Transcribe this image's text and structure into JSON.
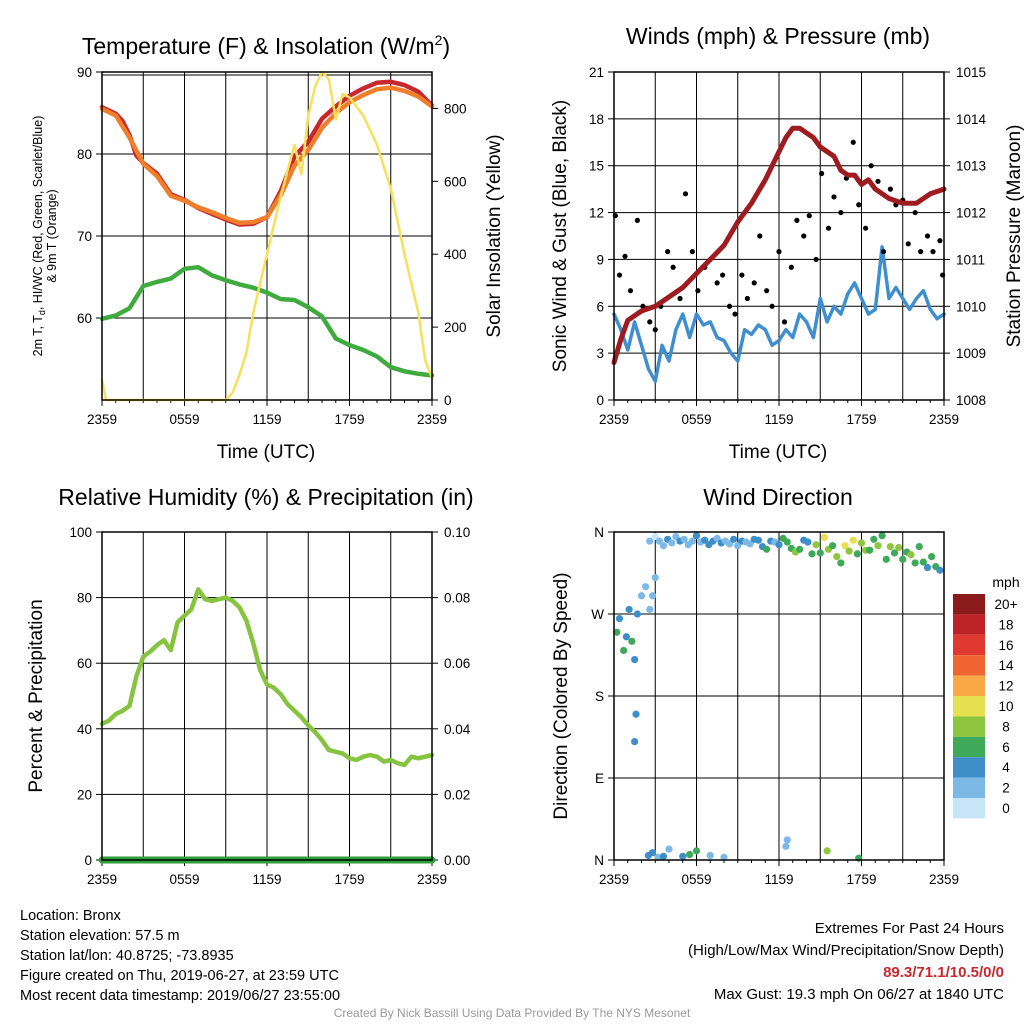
{
  "footer": {
    "location": "Location: Bronx",
    "elevation": "Station elevation: 57.5 m",
    "latlon": "Station lat/lon: 40.8725; -73.8935",
    "created": "Figure created on Thu, 2019-06-27, at 23:59 UTC",
    "recent": "Most recent data timestamp: 2019/06/27 23:55:00",
    "extremes_title": "Extremes For Past 24 Hours",
    "extremes_sub": "(High/Low/Max Wind/Precipitation/Snow Depth)",
    "extremes_values": "89.3/71.1/10.5/0/0",
    "max_gust": "Max Gust: 19.3 mph On 06/27 at 1840 UTC",
    "credit": "Created By Nick Bassill Using Data Provided By The NYS Mesonet"
  },
  "colors": {
    "t2m": "#c8282d",
    "t9m": "#f07e2a",
    "dewpoint": "#3fab3f",
    "insolation": "#f7e15a",
    "wind": "#3f8fd0",
    "gust": "#000000",
    "pressure": "#9e1b20",
    "rh": "#86c440",
    "precip": "#2e9e3a"
  },
  "chart_data": [
    {
      "type": "line",
      "title": "Temperature (F) & Insolation (W/m²)",
      "xlabel": "Time (UTC)",
      "ylabel": "2m T, Td, HI/WC (Red, Green, Scarlet/Blue) & 9m T (Orange)",
      "ylabel_line1": "2m T, T",
      "ylabel_sub": "d",
      "ylabel_line1b": ", HI/WC (Red, Green, Scarlet/Blue)",
      "ylabel_line2": "& 9m T (Orange)",
      "ylabel_right": "Solar Insolation (Yellow)",
      "xticks": [
        "2359",
        "0559",
        "1159",
        "1759",
        "2359"
      ],
      "yticks_left": [
        60,
        70,
        80,
        90
      ],
      "yticks_right": [
        0,
        200,
        400,
        600,
        800
      ],
      "ylim": [
        50,
        90
      ],
      "ylim_right": [
        0,
        900
      ],
      "grid": true,
      "series": [
        {
          "key": "t2m",
          "axis": "left",
          "x": [
            0,
            1,
            1.5,
            2,
            2.5,
            3,
            4,
            5,
            6,
            7,
            8,
            9,
            10,
            11,
            12,
            13,
            14,
            15,
            16,
            17,
            18,
            19,
            20,
            21,
            22,
            23,
            24
          ],
          "y": [
            85.7,
            84.9,
            84.0,
            82.3,
            79.8,
            78.9,
            77.6,
            75.1,
            74.4,
            73.4,
            72.7,
            72.0,
            71.4,
            71.5,
            72.3,
            75.5,
            79.7,
            81.5,
            84.3,
            85.8,
            87.1,
            88.0,
            88.7,
            88.8,
            88.4,
            87.6,
            85.9
          ]
        },
        {
          "key": "t9m",
          "axis": "left",
          "x": [
            0,
            1,
            2,
            3,
            4,
            5,
            6,
            7,
            8,
            9,
            10,
            11,
            12,
            13,
            14,
            15,
            16,
            17,
            18,
            19,
            20,
            21,
            22,
            23,
            24
          ],
          "y": [
            85.5,
            84.7,
            82.0,
            78.8,
            77.3,
            74.9,
            74.3,
            73.5,
            72.9,
            72.2,
            71.6,
            71.7,
            72.3,
            75.0,
            78.6,
            80.5,
            83.2,
            85.0,
            86.3,
            87.2,
            87.9,
            88.1,
            87.7,
            87.0,
            85.8
          ]
        },
        {
          "key": "dewpoint",
          "axis": "left",
          "x": [
            0,
            1,
            2,
            3,
            4,
            5,
            6,
            7,
            8,
            9,
            10,
            11,
            12,
            13,
            14,
            15,
            16,
            17,
            18,
            19,
            20,
            21,
            22,
            23,
            24
          ],
          "y": [
            59.9,
            60.3,
            61.2,
            63.9,
            64.4,
            64.8,
            66.0,
            66.2,
            65.2,
            64.6,
            64.1,
            63.7,
            63.1,
            62.3,
            62.2,
            61.3,
            60.2,
            57.5,
            56.7,
            56.1,
            55.3,
            54.0,
            53.5,
            53.2,
            53.0
          ]
        },
        {
          "key": "insolation",
          "axis": "right",
          "x": [
            0,
            0.3,
            1,
            4,
            7,
            9,
            9.5,
            10,
            10.5,
            11,
            12,
            13,
            14,
            14.5,
            15,
            15.5,
            16,
            16.5,
            17,
            17.5,
            18,
            19,
            20,
            21,
            22,
            23,
            23.5,
            24
          ],
          "y": [
            55,
            0,
            0,
            0,
            0,
            0,
            20,
            70,
            130,
            240,
            400,
            560,
            700,
            620,
            780,
            860,
            900,
            880,
            770,
            840,
            830,
            780,
            700,
            580,
            400,
            240,
            110,
            60
          ]
        }
      ]
    },
    {
      "type": "line",
      "title": "Winds (mph) & Pressure (mb)",
      "xlabel": "Time (UTC)",
      "ylabel": "Sonic Wind & Gust (Blue, Black)",
      "ylabel_right": "Station Pressure (Maroon)",
      "xticks": [
        "2359",
        "0559",
        "1159",
        "1759",
        "2359"
      ],
      "yticks_left": [
        0,
        3,
        6,
        9,
        12,
        15,
        18,
        21
      ],
      "yticks_right": [
        1008,
        1009,
        1010,
        1011,
        1012,
        1013,
        1014,
        1015
      ],
      "ylim": [
        0,
        21
      ],
      "ylim_right": [
        1008,
        1015
      ],
      "grid": true,
      "series": [
        {
          "key": "wind",
          "axis": "left",
          "x": [
            0,
            0.5,
            1,
            1.5,
            2,
            2.5,
            3,
            3.5,
            4,
            4.5,
            5,
            5.5,
            6,
            6.5,
            7,
            7.5,
            8,
            8.5,
            9,
            9.5,
            10,
            10.5,
            11,
            11.5,
            12,
            12.5,
            13,
            13.5,
            14,
            14.5,
            15,
            15.5,
            16,
            16.5,
            17,
            17.5,
            18,
            18.5,
            19,
            19.5,
            20,
            20.5,
            21,
            21.5,
            22,
            22.5,
            23,
            23.5,
            24
          ],
          "y": [
            5.5,
            4.5,
            3.2,
            5.0,
            3.5,
            2.0,
            1.2,
            3.5,
            2.5,
            4.5,
            5.5,
            4.0,
            5.5,
            4.8,
            5.0,
            4.0,
            3.8,
            3.0,
            2.5,
            4.5,
            4.2,
            4.8,
            4.5,
            3.5,
            3.8,
            4.5,
            4.0,
            5.5,
            5.0,
            4.0,
            6.5,
            5.0,
            6.0,
            5.5,
            6.8,
            7.5,
            6.5,
            5.5,
            5.8,
            9.8,
            6.5,
            7.2,
            6.5,
            5.8,
            6.5,
            7.0,
            5.8,
            5.2,
            5.5
          ]
        },
        {
          "key": "gust",
          "axis": "left",
          "style": "points",
          "x": [
            0.1,
            0.4,
            0.8,
            1.2,
            1.7,
            2.1,
            2.6,
            3.0,
            3.4,
            3.9,
            4.3,
            4.8,
            5.2,
            5.7,
            6.1,
            6.6,
            7.0,
            7.5,
            7.9,
            8.4,
            8.8,
            9.3,
            9.7,
            10.2,
            10.6,
            11.1,
            11.5,
            12.0,
            12.4,
            12.9,
            13.3,
            13.8,
            14.2,
            14.7,
            15.1,
            15.6,
            16.0,
            16.5,
            16.9,
            17.4,
            17.8,
            18.3,
            18.7,
            19.2,
            19.6,
            20.1,
            20.5,
            21.0,
            21.4,
            21.9,
            22.3,
            22.8,
            23.2,
            23.7,
            23.9
          ],
          "y": [
            11.8,
            8.0,
            9.2,
            7.0,
            11.5,
            6.0,
            5.0,
            4.5,
            6.0,
            9.5,
            8.5,
            6.5,
            13.2,
            9.5,
            7.0,
            8.5,
            9.0,
            7.5,
            8.0,
            6.0,
            5.5,
            8.0,
            6.5,
            7.5,
            10.5,
            7.0,
            6.0,
            9.5,
            5.0,
            8.5,
            11.5,
            10.5,
            11.8,
            9.0,
            14.5,
            11.0,
            13.0,
            12.0,
            14.2,
            16.5,
            12.5,
            11.0,
            15.0,
            14.0,
            9.5,
            13.5,
            12.5,
            12.8,
            10.0,
            12.0,
            9.5,
            10.5,
            9.5,
            10.2,
            8.0
          ]
        },
        {
          "key": "pressure",
          "axis": "right",
          "x": [
            0,
            0.5,
            1,
            2,
            3,
            4,
            5,
            6,
            7,
            8,
            9,
            10,
            11,
            12,
            12.5,
            13,
            13.5,
            14,
            14.5,
            15,
            16,
            16.5,
            17,
            17.5,
            18,
            18.5,
            19,
            20,
            21,
            22,
            23,
            24
          ],
          "y": [
            1008.8,
            1009.3,
            1009.7,
            1009.9,
            1010.0,
            1010.2,
            1010.4,
            1010.7,
            1011.0,
            1011.3,
            1011.8,
            1012.2,
            1012.7,
            1013.3,
            1013.6,
            1013.8,
            1013.8,
            1013.7,
            1013.6,
            1013.4,
            1013.2,
            1012.9,
            1012.8,
            1012.8,
            1012.6,
            1012.7,
            1012.5,
            1012.3,
            1012.2,
            1012.2,
            1012.4,
            1012.5
          ]
        }
      ]
    },
    {
      "type": "line",
      "title": "Relative Humidity (%) & Precipitation (in)",
      "xlabel": "",
      "ylabel": "Percent & Precipitation",
      "xticks": [
        "2359",
        "0559",
        "1159",
        "1759",
        "2359"
      ],
      "yticks_left": [
        0,
        20,
        40,
        60,
        80,
        100
      ],
      "yticks_right": [
        "0.00",
        "0.02",
        "0.04",
        "0.06",
        "0.08",
        "0.10"
      ],
      "ylim": [
        0,
        100
      ],
      "ylim_right": [
        0,
        0.1
      ],
      "grid": true,
      "series": [
        {
          "key": "rh",
          "axis": "left",
          "x": [
            0,
            0.5,
            1,
            1.5,
            2,
            2.5,
            3,
            3.5,
            4,
            4.5,
            5,
            5.5,
            6,
            6.5,
            7,
            7.5,
            8,
            8.5,
            9,
            9.5,
            10,
            10.5,
            11,
            11.5,
            12,
            12.5,
            13,
            13.5,
            14,
            14.5,
            15,
            15.5,
            16,
            16.5,
            17,
            17.5,
            18,
            18.5,
            19,
            19.5,
            20,
            20.5,
            21,
            21.5,
            22,
            22.5,
            23,
            23.5,
            24
          ],
          "y": [
            41.5,
            42.5,
            44.5,
            45.5,
            47.0,
            56.0,
            62.0,
            63.5,
            65.5,
            67.0,
            64.0,
            72.5,
            74.5,
            76.5,
            82.5,
            79.5,
            79.0,
            79.5,
            80.0,
            79.0,
            77.0,
            73.0,
            66.0,
            58.0,
            53.5,
            52.5,
            50.5,
            47.5,
            45.5,
            43.5,
            41.0,
            39.0,
            36.5,
            33.5,
            33.0,
            32.5,
            31.0,
            30.5,
            31.5,
            32.0,
            31.5,
            30.0,
            30.5,
            29.5,
            29.0,
            31.5,
            31.0,
            31.5,
            32.0
          ]
        },
        {
          "key": "precip",
          "axis": "right",
          "x": [
            0,
            24
          ],
          "y": [
            0,
            0
          ]
        }
      ]
    },
    {
      "type": "scatter",
      "title": "Wind Direction",
      "xlabel": "",
      "ylabel": "Direction (Colored By Speed)",
      "xticks": [
        "2359",
        "0559",
        "1159",
        "1759",
        "2359"
      ],
      "yticks_left": [
        "N",
        "E",
        "S",
        "W",
        "N"
      ],
      "ylim": [
        0,
        360
      ],
      "grid": true,
      "legend": {
        "title": "mph",
        "placement": "right",
        "labels": [
          "20+",
          "18",
          "16",
          "14",
          "12",
          "10",
          "8",
          "6",
          "4",
          "2",
          "0"
        ],
        "colors": [
          "#8b1a1a",
          "#bd2227",
          "#e03a30",
          "#ef6531",
          "#f9a846",
          "#e6e050",
          "#8fc63f",
          "#3fa95a",
          "#3d8ec9",
          "#7cb9e6",
          "#c6e6f8"
        ]
      },
      "points": {
        "x": [
          0.2,
          0.4,
          0.7,
          0.9,
          1.1,
          1.3,
          1.5,
          1.7,
          2.0,
          2.3,
          2.6,
          3.0,
          3.3,
          3.6,
          3.9,
          4.2,
          4.5,
          4.8,
          5.1,
          5.4,
          5.7,
          6.0,
          6.3,
          6.6,
          6.9,
          7.2,
          7.5,
          7.8,
          8.1,
          8.4,
          8.7,
          9.0,
          9.3,
          9.6,
          9.9,
          10.2,
          10.5,
          10.8,
          11.1,
          11.4,
          11.7,
          12.0,
          12.3,
          12.6,
          12.9,
          13.2,
          13.5,
          13.8,
          14.1,
          14.4,
          14.7,
          15.0,
          15.3,
          15.6,
          15.9,
          16.2,
          16.5,
          16.8,
          17.1,
          17.4,
          17.7,
          18.0,
          18.3,
          18.6,
          18.9,
          19.2,
          19.5,
          19.8,
          20.1,
          20.4,
          20.7,
          21.0,
          21.3,
          21.6,
          21.9,
          22.2,
          22.5,
          22.8,
          23.1,
          23.4,
          23.7,
          2.5,
          2.8,
          3.2,
          3.6,
          4.0,
          5.0,
          5.5,
          6.0,
          7.0,
          8.0,
          12.5,
          12.6,
          15.5,
          17.8,
          1.5,
          1.6,
          2.6,
          2.8,
          3.0
        ],
        "y": [
          250,
          265,
          230,
          245,
          275,
          240,
          220,
          270,
          290,
          300,
          350,
          355,
          350,
          345,
          352,
          348,
          355,
          350,
          352,
          346,
          350,
          356,
          349,
          351,
          346,
          350,
          353,
          348,
          350,
          347,
          352,
          345,
          350,
          349,
          347,
          352,
          351,
          344,
          341,
          350,
          349,
          346,
          353,
          349,
          342,
          338,
          341,
          351,
          349,
          336,
          346,
          337,
          354,
          341,
          345,
          333,
          326,
          345,
          339,
          351,
          336,
          348,
          340,
          340,
          352,
          345,
          356,
          330,
          344,
          337,
          343,
          330,
          338,
          335,
          326,
          344,
          327,
          321,
          333,
          322,
          318,
          5,
          8,
          3,
          4,
          12,
          4,
          6,
          10,
          5,
          3,
          15,
          22,
          10,
          2,
          130,
          160,
          275,
          290,
          310
        ],
        "speed": [
          6,
          5,
          7,
          5,
          4,
          6,
          5,
          4,
          3,
          2,
          2,
          1,
          2,
          3,
          4,
          3,
          2,
          4,
          3,
          2,
          3,
          4,
          3,
          4,
          4,
          5,
          3,
          4,
          2,
          3,
          4,
          3,
          4,
          2,
          3,
          4,
          4,
          5,
          6,
          4,
          3,
          5,
          6,
          7,
          6,
          8,
          7,
          5,
          4,
          6,
          8,
          7,
          10,
          9,
          7,
          8,
          6,
          11,
          9,
          10,
          7,
          8,
          9,
          6,
          7,
          8,
          7,
          6,
          8,
          7,
          9,
          6,
          7,
          8,
          7,
          6,
          7,
          5,
          6,
          7,
          5,
          4,
          4,
          3,
          5,
          2,
          4,
          6,
          7,
          3,
          2,
          2,
          3,
          8,
          6,
          4,
          4,
          2,
          3,
          2
        ]
      }
    }
  ]
}
